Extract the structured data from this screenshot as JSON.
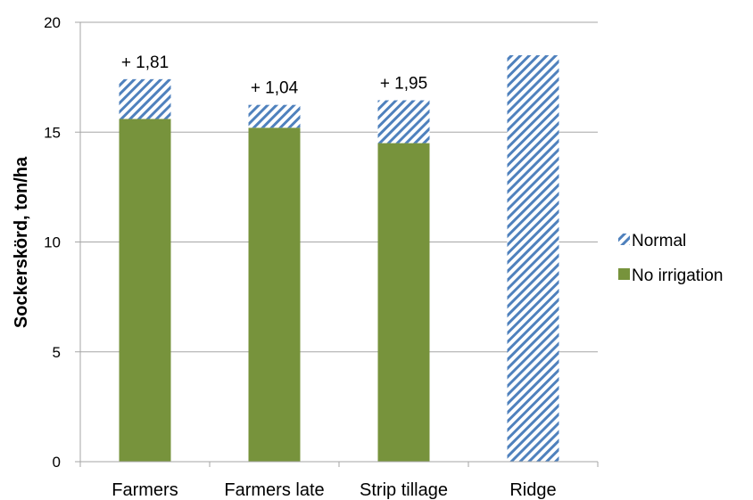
{
  "chart_data": {
    "type": "bar",
    "stacked": true,
    "categories": [
      "Farmers",
      "Farmers late",
      "Strip tillage",
      "Ridge"
    ],
    "series": [
      {
        "name": "No irrigation",
        "values": [
          15.6,
          15.2,
          14.5,
          0
        ],
        "color": "#77933c",
        "pattern": "solid"
      },
      {
        "name": "Normal",
        "values": [
          1.81,
          1.04,
          1.95,
          18.5
        ],
        "color": "#4f81bd",
        "pattern": "diagonal-stripes"
      }
    ],
    "data_labels": [
      "+ 1,81",
      "+ 1,04",
      "+ 1,95",
      ""
    ],
    "ylabel": "Sockerskörd, ton/ha",
    "xlabel": "",
    "ylim": [
      0,
      20
    ],
    "yticks": [
      0,
      5,
      10,
      15,
      20
    ],
    "grid": true,
    "legend": {
      "position": "right",
      "entries": [
        "Normal",
        "No irrigation"
      ]
    }
  }
}
